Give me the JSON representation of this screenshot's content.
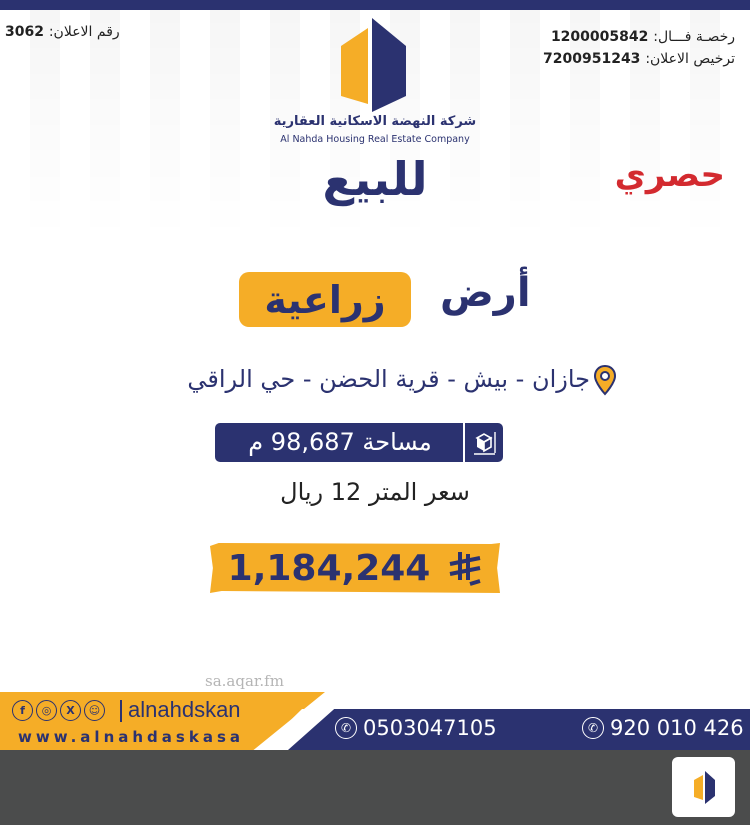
{
  "header": {
    "ad_number_label": "رقم الاعلان:",
    "ad_number": "3062",
    "fal_license_label": "رخصـة فـــال:",
    "fal_license": "1200005842",
    "ad_license_label": "ترخيص الاعلان:",
    "ad_license": "7200951243"
  },
  "brand": {
    "name_ar": "شركة النهضة الاسكانية العقارية",
    "name_en": "Al Nahda Housing Real Estate Company",
    "colors": {
      "navy": "#2b3270",
      "yellow": "#f5ad27",
      "red": "#d32a2f"
    }
  },
  "listing": {
    "for_sale": "للبيع",
    "exclusive": "حصري",
    "type_word": "أرض",
    "type_highlight": "زراعية",
    "location": "جازان - بيش - قرية الحضن - حي الراقي",
    "area_text": "مساحة   98,687 م",
    "price_per_meter": "سعر المتر 12 ريال",
    "total_price": "1,184,244",
    "currency_icon": "saudi-riyal-symbol"
  },
  "footer": {
    "social_icons": [
      "facebook",
      "instagram",
      "x",
      "snapchat"
    ],
    "handle": "alnahdskan",
    "website": "www.alnahdaskasa",
    "watermark": "sa.aqar.fm",
    "phone_mobile": "0503047105",
    "phone_unified": "920 010 426"
  }
}
